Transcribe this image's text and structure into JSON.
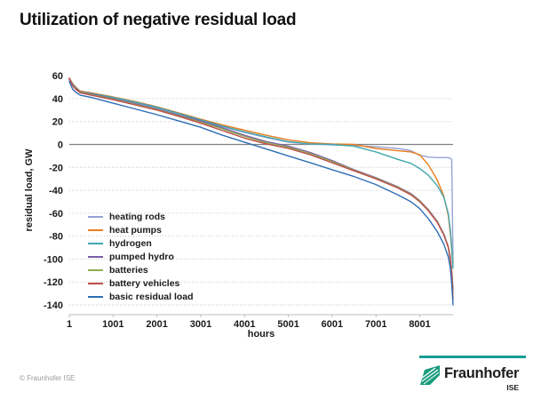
{
  "title": "Utilization of negative residual load",
  "footer": {
    "copyright": "© Fraunhofer ISE",
    "logo_text": "Fraunhofer",
    "logo_sub": "ISE",
    "logo_green": "#179c7d",
    "rule_color": "#169e94"
  },
  "colors": {
    "grid_dotted": "#c9c9c9",
    "zero_line": "#808080",
    "axis_line": "#bdbdbd",
    "tick_text": "#1a1a1a"
  },
  "chart_data": {
    "type": "line",
    "title": "Utilization of negative residual load",
    "xlabel": "hours",
    "ylabel": "residual load, GW",
    "xlim": [
      1,
      8760
    ],
    "ylim": [
      -140,
      60
    ],
    "x_ticks": [
      1,
      1001,
      2001,
      3001,
      4001,
      5001,
      6001,
      7001,
      8001
    ],
    "y_ticks": [
      60,
      40,
      20,
      0,
      -20,
      -40,
      -60,
      -80,
      -100,
      -120,
      -140
    ],
    "grid_dotted_levels": [
      40,
      20,
      -20,
      -40,
      -60,
      -80,
      -100,
      -120,
      -140
    ],
    "zero_line_level": 0,
    "legend_position": "middle-left",
    "x": [
      1,
      80,
      150,
      250,
      500,
      1000,
      1500,
      2000,
      2500,
      3000,
      3500,
      4000,
      4500,
      5000,
      5500,
      6000,
      6500,
      7000,
      7500,
      7800,
      8000,
      8200,
      8400,
      8550,
      8650,
      8700,
      8730,
      8760
    ],
    "series": [
      {
        "name": "heating rods",
        "color": "#98a2d4",
        "values": [
          56.5,
          52,
          49,
          45.5,
          44,
          40.5,
          36.5,
          32,
          26.5,
          21,
          15.5,
          10.5,
          6,
          2,
          0.3,
          -0.5,
          -1,
          -2,
          -3.5,
          -5.5,
          -9.5,
          -11,
          -11.5,
          -11.5,
          -11.5,
          -12,
          -13,
          -103
        ]
      },
      {
        "name": "heat pumps",
        "color": "#e87d1e",
        "values": [
          58,
          53,
          50,
          46.5,
          45,
          41.5,
          37.5,
          33,
          27.5,
          22,
          17,
          12.5,
          8,
          4,
          1.5,
          0.5,
          0,
          -3.5,
          -5.5,
          -6.5,
          -9,
          -18,
          -31,
          -45,
          -62,
          -78,
          -92,
          -105
        ]
      },
      {
        "name": "hydrogen",
        "color": "#41a6b0",
        "values": [
          57.5,
          52.5,
          49.5,
          46,
          44.5,
          41,
          37,
          32.5,
          27,
          21.5,
          16,
          11,
          6.5,
          2.5,
          0.5,
          0,
          -1.5,
          -6.5,
          -13,
          -16.5,
          -21,
          -27,
          -36,
          -46,
          -60,
          -75,
          -90,
          -108
        ]
      },
      {
        "name": "pumped hydro",
        "color": "#7a5ea8",
        "values": [
          57.5,
          52,
          49,
          46,
          44,
          40,
          35.5,
          31,
          25.5,
          20.5,
          14.5,
          8,
          2.5,
          -1.5,
          -7,
          -14,
          -22,
          -29,
          -37,
          -43,
          -49,
          -57,
          -67,
          -78,
          -89,
          -98,
          -110,
          -126
        ]
      },
      {
        "name": "batteries",
        "color": "#92ac51",
        "values": [
          57,
          51.5,
          48.5,
          45.5,
          43.5,
          39.5,
          35,
          30.5,
          25,
          19.5,
          13.5,
          7,
          1.5,
          -2.5,
          -8,
          -15,
          -22.5,
          -29.5,
          -37.5,
          -43.5,
          -49.5,
          -57.5,
          -67.5,
          -78.5,
          -89.5,
          -99,
          -111,
          -130
        ]
      },
      {
        "name": "battery vehicles",
        "color": "#bf4e4b",
        "values": [
          57.5,
          51,
          48,
          45,
          43,
          39,
          34.5,
          30,
          24.5,
          18.5,
          12,
          5.5,
          0.5,
          -3.5,
          -9,
          -16,
          -23,
          -30,
          -38,
          -44,
          -50,
          -58,
          -68,
          -79,
          -90,
          -101,
          -113,
          -135
        ]
      },
      {
        "name": "basic residual load",
        "color": "#2e6db4",
        "values": [
          55,
          48,
          45.5,
          43,
          41,
          36,
          31,
          26,
          20.5,
          15,
          8,
          2,
          -4,
          -10,
          -16,
          -22,
          -28,
          -35,
          -44,
          -50,
          -56,
          -65,
          -76,
          -87,
          -98,
          -108,
          -122,
          -140
        ]
      }
    ]
  }
}
